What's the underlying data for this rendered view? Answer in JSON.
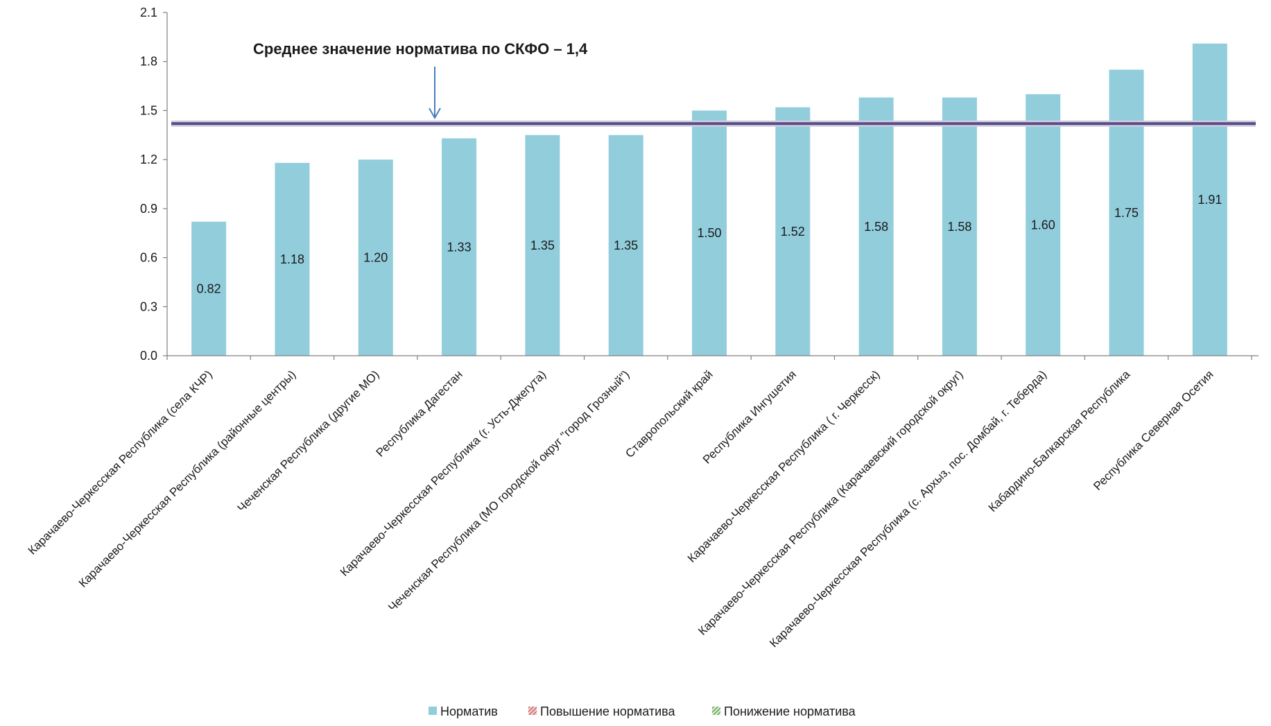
{
  "chart_data": {
    "type": "bar",
    "title": "",
    "xlabel": "",
    "ylabel": "",
    "ylim": [
      0,
      2.1
    ],
    "yticks": [
      "0.0",
      "0.3",
      "0.6",
      "0.9",
      "1.2",
      "1.5",
      "1.8",
      "2.1"
    ],
    "grid": false,
    "categories": [
      "Карачаево-Черкесская Республика (села КЧР)",
      "Карачаево-Черкесская Республика (районные центры)",
      "Чеченская Республика (другие МО)",
      "Республика Дагестан",
      "Карачаево-Черкесская Республика (г. Усть-Джегута)",
      "Чеченская Республика (МО городской округ \"город Грозный\")",
      "Ставропольский край",
      "Республика Ингушетия",
      "Карачаево-Черкесская Республика ( г. Черкесск)",
      "Карачаево-Черкесская Республика (Карачаевский городской округ)",
      "Карачаево-Черкесская Республика (с. Архыз, пос. Домбай, г. Теберда)",
      "Кабардино-Балкарская Республика",
      "Республика Северная Осетия"
    ],
    "series": [
      {
        "name": "Норматив",
        "color": "#92cddc",
        "values": [
          0.82,
          1.18,
          1.2,
          1.33,
          1.35,
          1.35,
          1.5,
          1.52,
          1.58,
          1.58,
          1.6,
          1.75,
          1.91
        ],
        "labels": [
          "0.82",
          "1.18",
          "1.20",
          "1.33",
          "1.35",
          "1.35",
          "1.50",
          "1.52",
          "1.58",
          "1.58",
          "1.60",
          "1.75",
          "1.91"
        ]
      }
    ],
    "reference_line": {
      "value": 1.42,
      "color": "#5b4a86"
    },
    "annotation": {
      "text": "Среднее значение норматива по СКФО – 1,4",
      "arrow_color": "#4a7ebb"
    },
    "legend": {
      "placement": "bottom",
      "items": [
        {
          "label": "Норматив",
          "color": "#92cddc",
          "pattern": "solid"
        },
        {
          "label": "Повышение норматива",
          "color": "#c0504d",
          "pattern": "hatch"
        },
        {
          "label": "Понижение норматива",
          "color": "#4f9a3c",
          "pattern": "hatch"
        }
      ]
    }
  }
}
